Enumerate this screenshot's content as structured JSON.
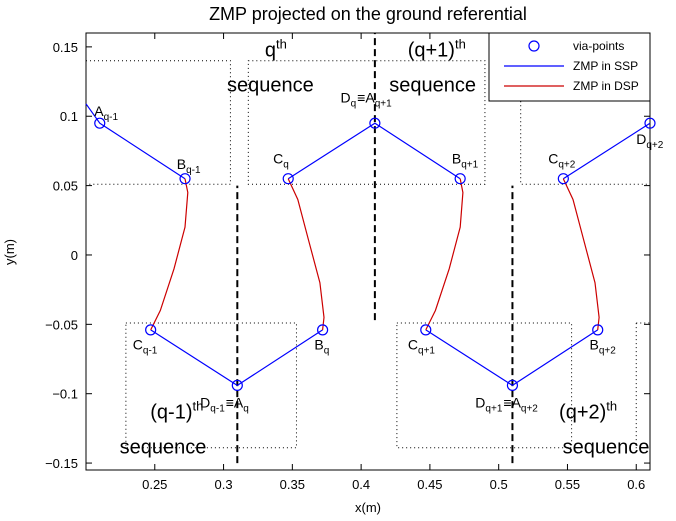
{
  "chart_data": {
    "type": "line",
    "title": "ZMP projected on the ground referential",
    "xlabel": "x(m)",
    "ylabel": "y(m)",
    "xlim": [
      0.2,
      0.61
    ],
    "ylim": [
      -0.155,
      0.16
    ],
    "xticks": [
      0.25,
      0.3,
      0.35,
      0.4,
      0.45,
      0.5,
      0.55,
      0.6
    ],
    "xtick_labels": [
      "0.25",
      "0.3",
      "0.35",
      "0.4",
      "0.45",
      "0.5",
      "0.55",
      "0.6"
    ],
    "yticks": [
      -0.15,
      -0.1,
      -0.05,
      0,
      0.05,
      0.1,
      0.15
    ],
    "ytick_labels": [
      "−0.15",
      "−0.1",
      "−0.05",
      "0",
      "0.05",
      "0.1",
      "0.15"
    ],
    "grid": false,
    "legend_position": "top-right",
    "legend": [
      {
        "label": "via-points",
        "kind": "circle",
        "color": "#0000ff"
      },
      {
        "label": "ZMP in SSP",
        "kind": "line",
        "color": "#0000ff"
      },
      {
        "label": "ZMP in DSP",
        "kind": "line",
        "color": "#cc0000"
      }
    ],
    "series": [
      {
        "name": "ZMP in SSP",
        "color": "#0000ff",
        "segments": [
          [
            [
              0.2,
              0.109
            ],
            [
              0.21,
              0.095
            ],
            [
              0.272,
              0.055
            ]
          ],
          [
            [
              0.247,
              -0.054
            ],
            [
              0.31,
              -0.094
            ],
            [
              0.372,
              -0.054
            ]
          ],
          [
            [
              0.347,
              0.055
            ],
            [
              0.41,
              0.095
            ],
            [
              0.472,
              0.055
            ]
          ],
          [
            [
              0.447,
              -0.054
            ],
            [
              0.51,
              -0.094
            ],
            [
              0.572,
              -0.054
            ]
          ],
          [
            [
              0.547,
              0.055
            ],
            [
              0.61,
              0.095
            ]
          ]
        ]
      },
      {
        "name": "ZMP in DSP",
        "color": "#cc0000",
        "segments": [
          [
            [
              0.272,
              0.055
            ],
            [
              0.274,
              0.045
            ],
            [
              0.272,
              0.02
            ],
            [
              0.264,
              -0.01
            ],
            [
              0.254,
              -0.04
            ],
            [
              0.247,
              -0.054
            ]
          ],
          [
            [
              0.347,
              0.055
            ],
            [
              0.354,
              0.04
            ],
            [
              0.362,
              0.01
            ],
            [
              0.37,
              -0.02
            ],
            [
              0.373,
              -0.045
            ],
            [
              0.372,
              -0.054
            ]
          ],
          [
            [
              0.472,
              0.055
            ],
            [
              0.474,
              0.045
            ],
            [
              0.472,
              0.02
            ],
            [
              0.464,
              -0.01
            ],
            [
              0.454,
              -0.04
            ],
            [
              0.447,
              -0.054
            ]
          ],
          [
            [
              0.547,
              0.055
            ],
            [
              0.554,
              0.04
            ],
            [
              0.562,
              0.01
            ],
            [
              0.57,
              -0.02
            ],
            [
              0.573,
              -0.045
            ],
            [
              0.572,
              -0.054
            ]
          ]
        ]
      },
      {
        "name": "via-points",
        "color": "#0000ff",
        "points": [
          [
            0.21,
            0.095
          ],
          [
            0.272,
            0.055
          ],
          [
            0.247,
            -0.054
          ],
          [
            0.31,
            -0.094
          ],
          [
            0.372,
            -0.054
          ],
          [
            0.347,
            0.055
          ],
          [
            0.41,
            0.095
          ],
          [
            0.472,
            0.055
          ],
          [
            0.447,
            -0.054
          ],
          [
            0.51,
            -0.094
          ],
          [
            0.572,
            -0.054
          ],
          [
            0.547,
            0.055
          ],
          [
            0.61,
            0.095
          ]
        ]
      }
    ],
    "dashed_vlines": [
      {
        "x": 0.31,
        "y": [
          -0.15,
          0.05
        ]
      },
      {
        "x": 0.41,
        "y": [
          -0.047,
          0.16
        ]
      },
      {
        "x": 0.51,
        "y": [
          -0.15,
          0.05
        ]
      }
    ],
    "dotted_boxes": [
      {
        "x": [
          0.2,
          0.305
        ],
        "y": [
          0.051,
          0.14
        ]
      },
      {
        "x": [
          0.318,
          0.49
        ],
        "y": [
          0.051,
          0.14
        ]
      },
      {
        "x": [
          0.516,
          0.61
        ],
        "y": [
          0.051,
          0.14
        ]
      },
      {
        "x": [
          0.229,
          0.353
        ],
        "y": [
          -0.139,
          -0.049
        ]
      },
      {
        "x": [
          0.426,
          0.553
        ],
        "y": [
          -0.139,
          -0.049
        ]
      },
      {
        "x": [
          0.6,
          0.61
        ],
        "y": [
          -0.139,
          -0.049
        ]
      }
    ],
    "annotations": [
      {
        "base": "A",
        "sub": "q-1",
        "x": 0.206,
        "y": 0.1
      },
      {
        "base": "B",
        "sub": "q-1",
        "x": 0.266,
        "y": 0.062
      },
      {
        "base": "C",
        "sub": "q-1",
        "x": 0.234,
        "y": -0.068
      },
      {
        "base": "D",
        "sub": "q-1",
        "x": 0.283,
        "y": -0.11,
        "eq": true,
        "base2": "A",
        "sub2": "q"
      },
      {
        "base": "B",
        "sub": "q",
        "x": 0.366,
        "y": -0.068
      },
      {
        "base": "C",
        "sub": "q",
        "x": 0.336,
        "y": 0.066
      },
      {
        "base": "D",
        "sub": "q",
        "x": 0.385,
        "y": 0.11,
        "eq": true,
        "base2": "A",
        "sub2": "q+1"
      },
      {
        "base": "B",
        "sub": "q+1",
        "x": 0.466,
        "y": 0.066
      },
      {
        "base": "C",
        "sub": "q+1",
        "x": 0.434,
        "y": -0.068
      },
      {
        "base": "D",
        "sub": "q+1",
        "x": 0.483,
        "y": -0.11,
        "eq": true,
        "base2": "A",
        "sub2": "q+2"
      },
      {
        "base": "B",
        "sub": "q+2",
        "x": 0.566,
        "y": -0.068
      },
      {
        "base": "C",
        "sub": "q+2",
        "x": 0.536,
        "y": 0.066
      },
      {
        "base": "D",
        "sub": "q+2",
        "x": 0.6,
        "y": 0.08
      }
    ],
    "sequence_labels": [
      {
        "base": "q",
        "sup": "th",
        "x": 0.338,
        "y": 0.143
      },
      {
        "base": "(q+1)",
        "sup": "th",
        "x": 0.455,
        "y": 0.143
      },
      {
        "base": "(q-1)",
        "sup": "th",
        "x": 0.266,
        "y": -0.118
      },
      {
        "base": "(q+2)",
        "sup": "th",
        "x": 0.565,
        "y": -0.118
      }
    ],
    "sequence_word": "sequence",
    "sequence_word_positions": [
      {
        "x": 0.334,
        "y": 0.118
      },
      {
        "x": 0.452,
        "y": 0.118
      },
      {
        "x": 0.256,
        "y": -0.143
      },
      {
        "x": 0.578,
        "y": -0.143
      }
    ]
  }
}
